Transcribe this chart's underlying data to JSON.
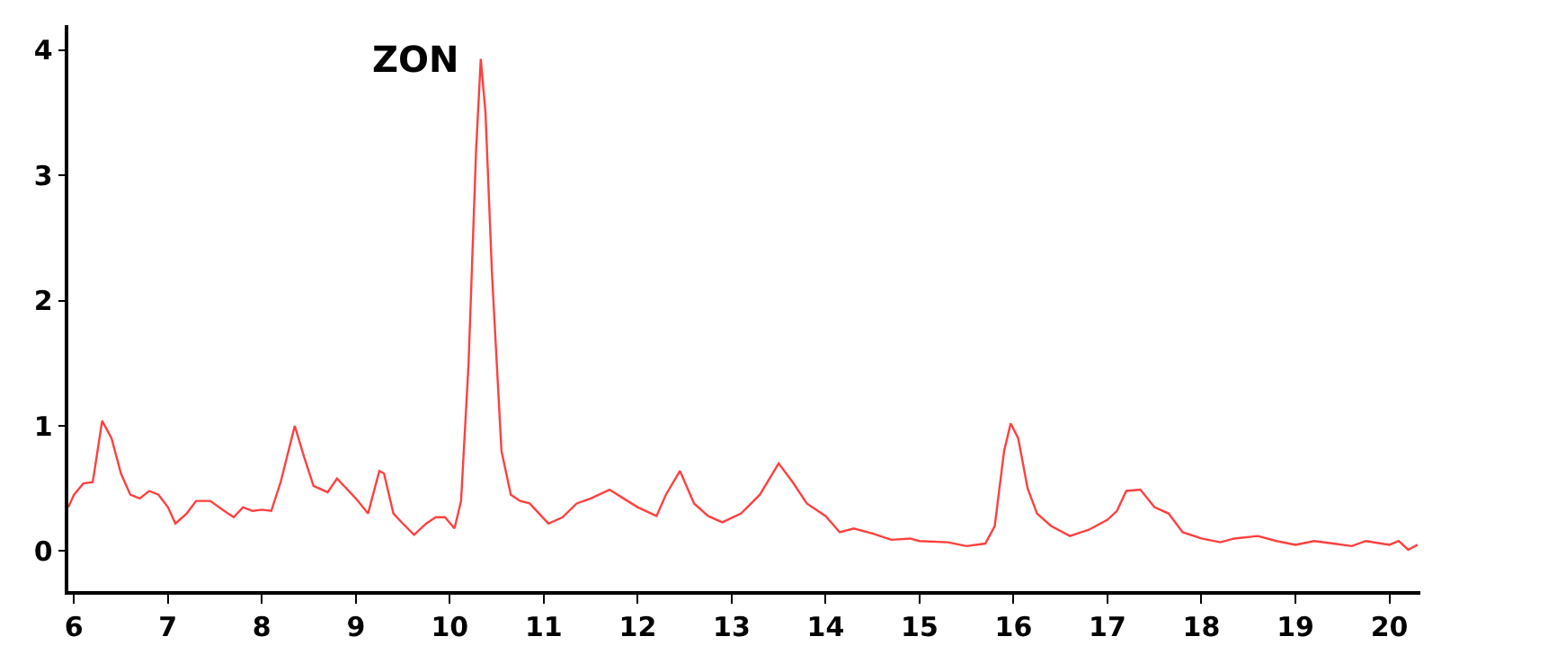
{
  "chart_data": {
    "type": "line",
    "x": [
      5.94,
      6.0,
      6.1,
      6.2,
      6.3,
      6.4,
      6.5,
      6.6,
      6.7,
      6.8,
      6.9,
      7.0,
      7.08,
      7.2,
      7.3,
      7.45,
      7.6,
      7.7,
      7.8,
      7.9,
      8.0,
      8.1,
      8.2,
      8.35,
      8.45,
      8.55,
      8.7,
      8.8,
      8.9,
      9.0,
      9.13,
      9.25,
      9.3,
      9.4,
      9.5,
      9.62,
      9.75,
      9.85,
      9.95,
      10.05,
      10.12,
      10.2,
      10.28,
      10.33,
      10.38,
      10.45,
      10.55,
      10.65,
      10.75,
      10.85,
      10.95,
      11.05,
      11.2,
      11.35,
      11.5,
      11.7,
      11.85,
      12.0,
      12.2,
      12.3,
      12.45,
      12.6,
      12.75,
      12.9,
      13.1,
      13.3,
      13.5,
      13.65,
      13.8,
      14.0,
      14.15,
      14.3,
      14.5,
      14.7,
      14.9,
      15.0,
      15.3,
      15.5,
      15.7,
      15.8,
      15.9,
      15.97,
      16.05,
      16.15,
      16.25,
      16.4,
      16.6,
      16.8,
      17.0,
      17.1,
      17.2,
      17.35,
      17.5,
      17.65,
      17.8,
      18.0,
      18.2,
      18.35,
      18.6,
      18.8,
      19.0,
      19.2,
      19.4,
      19.6,
      19.75,
      20.0,
      20.1,
      20.2,
      20.3
    ],
    "series": [
      {
        "color": "#ff4040",
        "values": [
          0.35,
          0.45,
          0.54,
          0.55,
          1.04,
          0.9,
          0.62,
          0.45,
          0.42,
          0.48,
          0.45,
          0.35,
          0.22,
          0.3,
          0.4,
          0.4,
          0.32,
          0.27,
          0.35,
          0.32,
          0.33,
          0.32,
          0.55,
          1.0,
          0.75,
          0.52,
          0.47,
          0.58,
          0.5,
          0.42,
          0.3,
          0.64,
          0.62,
          0.3,
          0.22,
          0.13,
          0.22,
          0.27,
          0.27,
          0.18,
          0.4,
          1.5,
          3.2,
          3.93,
          3.5,
          2.2,
          0.8,
          0.45,
          0.4,
          0.38,
          0.3,
          0.22,
          0.27,
          0.38,
          0.42,
          0.49,
          0.42,
          0.35,
          0.28,
          0.45,
          0.64,
          0.38,
          0.28,
          0.23,
          0.3,
          0.45,
          0.7,
          0.55,
          0.38,
          0.28,
          0.15,
          0.18,
          0.14,
          0.09,
          0.1,
          0.08,
          0.07,
          0.04,
          0.06,
          0.2,
          0.8,
          1.02,
          0.9,
          0.5,
          0.3,
          0.2,
          0.12,
          0.17,
          0.25,
          0.32,
          0.48,
          0.49,
          0.35,
          0.3,
          0.15,
          0.1,
          0.07,
          0.1,
          0.12,
          0.08,
          0.05,
          0.08,
          0.06,
          0.04,
          0.08,
          0.05,
          0.08,
          0.01,
          0.05
        ]
      }
    ],
    "annotations": [
      {
        "text": "ZON",
        "x": 10.33,
        "y": 3.93
      }
    ],
    "xlim": [
      5.94,
      20.33
    ],
    "ylim": [
      -0.32,
      4.2
    ],
    "xticks": [
      6,
      7,
      8,
      9,
      10,
      11,
      12,
      13,
      14,
      15,
      16,
      17,
      18,
      19,
      20
    ],
    "yticks": [
      0,
      1,
      2,
      3,
      4
    ],
    "marker": "none",
    "line_style": "solid"
  }
}
